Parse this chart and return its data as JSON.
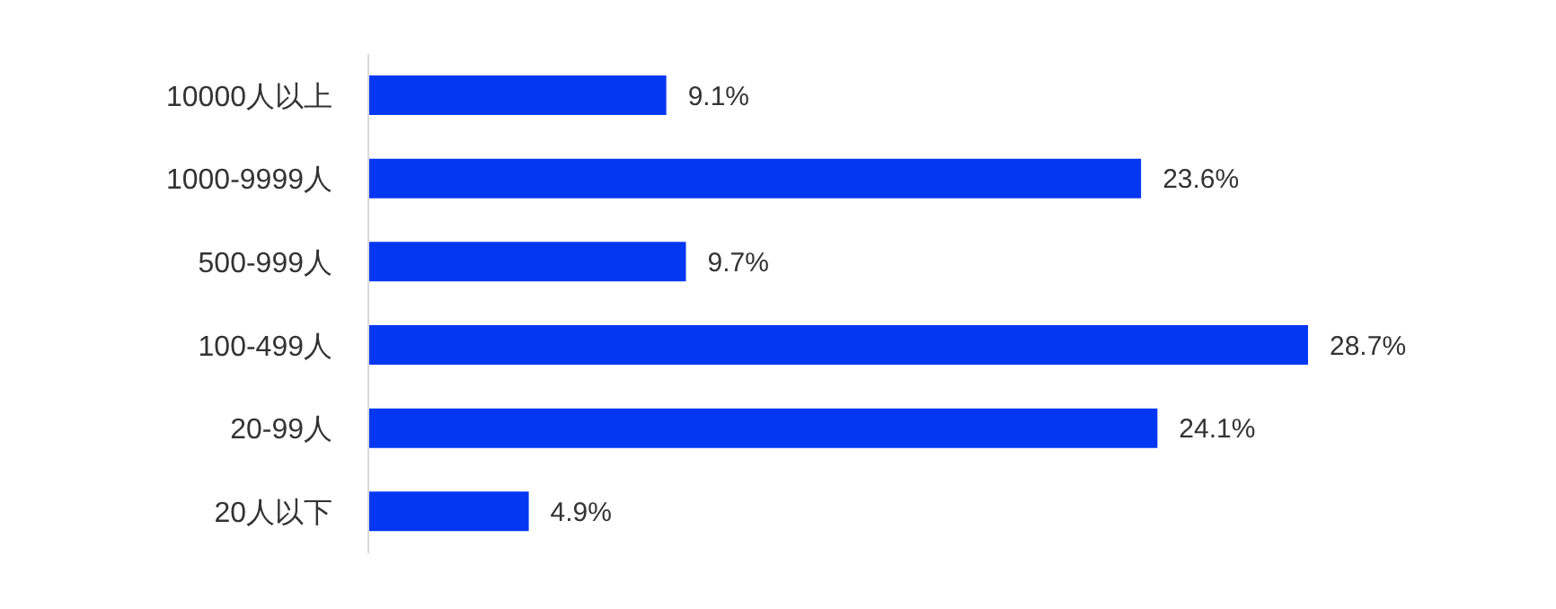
{
  "chart_data": {
    "type": "bar",
    "orientation": "horizontal",
    "categories": [
      "10000人以上",
      "1000-9999人",
      "500-999人",
      "100-499人",
      "20-99人",
      "20人以下"
    ],
    "values": [
      9.1,
      23.6,
      9.7,
      28.7,
      24.1,
      4.9
    ],
    "value_labels": [
      "9.1%",
      "23.6%",
      "9.7%",
      "28.7%",
      "24.1%",
      "4.9%"
    ],
    "color": "#0437f2",
    "grid": false,
    "legend": false
  }
}
